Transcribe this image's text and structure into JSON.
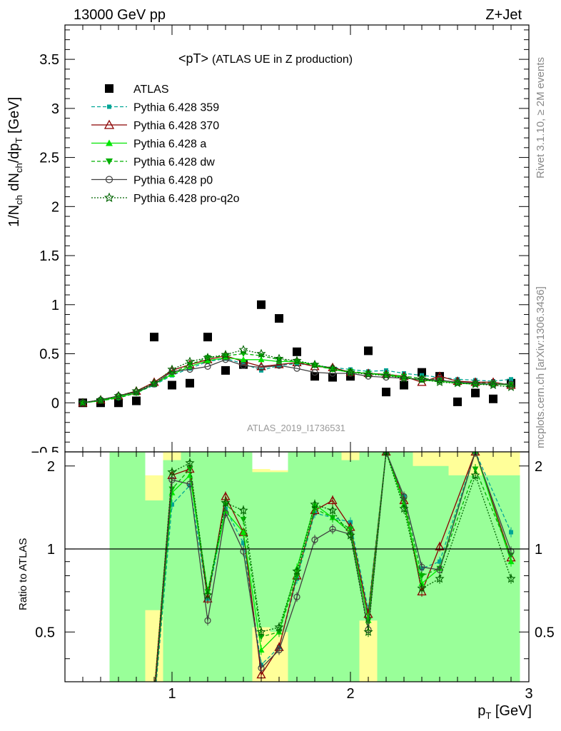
{
  "header": {
    "left": "13000 GeV pp",
    "right": "Z+Jet"
  },
  "side_labels": {
    "rivet": "Rivet 3.1.10, ≥ 2M events",
    "mcplots": "mcplots.cern.ch [arXiv:1306.3436]"
  },
  "watermark": "ATLAS_2019_I1736531",
  "colors": {
    "atlas": "#000000",
    "p359": "#00a596",
    "p370": "#8b0000",
    "a": "#00e600",
    "dw": "#00b000",
    "p0": "#404040",
    "pro_q2o": "#006400",
    "band_green": "#99ff99",
    "band_yellow": "#ffff99"
  },
  "chart_data": [
    {
      "type": "line",
      "title": "<pT> (ATLAS UE in Z production)",
      "title_parts": {
        "main": "<pT>",
        "sub": "(ATLAS UE in Z production)"
      },
      "ylabel": "1/N_ch dN_ch/dp_T [GeV]",
      "ylabel_parts": {
        "a": "1/N",
        "a_sub": "ch",
        "b": " dN",
        "b_sub": "ch",
        "c": "/dp",
        "c_sub": "T",
        "d": " [GeV]"
      },
      "ylim": [
        -0.5,
        3.85
      ],
      "xlim": [
        0.4,
        3.0
      ],
      "yticks": [
        "0",
        "0.5",
        "1",
        "1.5",
        "2",
        "2.5",
        "3",
        "3.5"
      ],
      "legend_position": "top-left",
      "x": [
        0.5,
        0.6,
        0.7,
        0.8,
        0.9,
        1.0,
        1.1,
        1.2,
        1.3,
        1.4,
        1.5,
        1.6,
        1.7,
        1.8,
        1.9,
        2.0,
        2.1,
        2.2,
        2.3,
        2.4,
        2.5,
        2.6,
        2.7,
        2.8,
        2.9
      ],
      "series": [
        {
          "name": "ATLAS",
          "values": [
            0.0,
            0.0,
            0.0,
            0.02,
            0.67,
            0.18,
            0.2,
            0.67,
            0.33,
            0.39,
            1.0,
            0.86,
            0.52,
            0.27,
            0.26,
            0.27,
            0.53,
            0.11,
            0.18,
            0.31,
            0.27,
            0.01,
            0.1,
            0.04,
            0.2
          ]
        },
        {
          "name": "Pythia 6.428 359",
          "values": [
            0.0,
            0.03,
            0.05,
            0.1,
            0.18,
            0.28,
            0.35,
            0.42,
            0.45,
            0.4,
            0.33,
            0.38,
            0.4,
            0.38,
            0.36,
            0.34,
            0.32,
            0.33,
            0.3,
            0.28,
            0.26,
            0.24,
            0.23,
            0.22,
            0.24
          ]
        },
        {
          "name": "Pythia 6.428 370",
          "values": [
            0.0,
            0.03,
            0.07,
            0.12,
            0.21,
            0.33,
            0.39,
            0.44,
            0.48,
            0.42,
            0.37,
            0.39,
            0.41,
            0.37,
            0.36,
            0.31,
            0.3,
            0.29,
            0.27,
            0.21,
            0.27,
            0.22,
            0.21,
            0.21,
            0.18
          ]
        },
        {
          "name": "Pythia 6.428 a",
          "values": [
            0.0,
            0.02,
            0.06,
            0.1,
            0.19,
            0.29,
            0.37,
            0.43,
            0.46,
            0.44,
            0.44,
            0.42,
            0.42,
            0.39,
            0.34,
            0.31,
            0.3,
            0.28,
            0.26,
            0.23,
            0.22,
            0.2,
            0.19,
            0.19,
            0.18
          ]
        },
        {
          "name": "Pythia 6.428 dw",
          "values": [
            0.0,
            0.02,
            0.05,
            0.1,
            0.19,
            0.3,
            0.39,
            0.46,
            0.48,
            0.5,
            0.48,
            0.44,
            0.42,
            0.38,
            0.34,
            0.32,
            0.3,
            0.29,
            0.27,
            0.25,
            0.23,
            0.21,
            0.2,
            0.2,
            0.19
          ]
        },
        {
          "name": "Pythia 6.428 p0",
          "values": [
            0.0,
            0.03,
            0.07,
            0.11,
            0.19,
            0.32,
            0.34,
            0.37,
            0.44,
            0.38,
            0.36,
            0.38,
            0.35,
            0.31,
            0.3,
            0.3,
            0.27,
            0.26,
            0.25,
            0.24,
            0.23,
            0.21,
            0.2,
            0.19,
            0.19
          ]
        },
        {
          "name": "Pythia 6.428 pro-q2o",
          "values": [
            0.0,
            0.03,
            0.07,
            0.12,
            0.2,
            0.34,
            0.42,
            0.46,
            0.49,
            0.54,
            0.5,
            0.45,
            0.43,
            0.39,
            0.35,
            0.31,
            0.29,
            0.28,
            0.25,
            0.24,
            0.21,
            0.2,
            0.19,
            0.18,
            0.16
          ]
        }
      ]
    },
    {
      "type": "line",
      "ylabel": "Ratio to ATLAS",
      "xlabel": "p_T [GeV]",
      "xlabel_parts": {
        "a": "p",
        "a_sub": "T",
        "b": " [GeV]"
      },
      "xlim": [
        0.4,
        3.0
      ],
      "ylim": [
        0.33,
        2.25
      ],
      "xticks": [
        "1",
        "2",
        "3"
      ],
      "yticks": [
        "0.5",
        "1",
        "2"
      ],
      "reference_line": 1,
      "x": [
        0.9,
        1.0,
        1.1,
        1.2,
        1.3,
        1.4,
        1.5,
        1.6,
        1.7,
        1.8,
        1.9,
        2.0,
        2.1,
        2.2,
        2.3,
        2.4,
        2.5,
        2.7,
        2.9
      ],
      "series": [
        {
          "name": "Pythia 6.428 359",
          "values": [
            0.27,
            1.45,
            1.7,
            0.66,
            1.4,
            1.05,
            0.38,
            0.44,
            0.78,
            1.35,
            1.3,
            1.25,
            0.6,
            2.25,
            1.55,
            0.85,
            0.9,
            2.25,
            1.15
          ]
        },
        {
          "name": "Pythia 6.428 370",
          "values": [
            0.3,
            1.85,
            1.95,
            0.66,
            1.55,
            1.15,
            0.35,
            0.44,
            0.8,
            1.38,
            1.5,
            1.2,
            0.58,
            2.25,
            1.5,
            0.7,
            1.02,
            2.25,
            0.93
          ]
        },
        {
          "name": "Pythia 6.428 a",
          "values": [
            0.28,
            1.6,
            1.85,
            0.7,
            1.37,
            1.15,
            0.43,
            0.5,
            0.85,
            1.45,
            1.3,
            1.15,
            0.55,
            2.25,
            1.45,
            0.75,
            0.85,
            2.25,
            0.9
          ]
        },
        {
          "name": "Pythia 6.428 dw",
          "values": [
            0.28,
            1.65,
            1.95,
            0.7,
            1.45,
            1.28,
            0.48,
            0.5,
            0.8,
            1.4,
            1.3,
            1.18,
            0.55,
            2.25,
            1.5,
            0.8,
            0.85,
            1.95,
            0.95
          ]
        },
        {
          "name": "Pythia 6.428 p0",
          "values": [
            0.28,
            1.78,
            1.72,
            0.55,
            1.35,
            0.98,
            0.37,
            0.43,
            0.67,
            1.08,
            1.18,
            1.13,
            0.51,
            2.25,
            1.55,
            0.86,
            0.84,
            2.25,
            0.98
          ]
        },
        {
          "name": "Pythia 6.428 pro-q2o",
          "values": [
            0.3,
            1.9,
            2.05,
            0.68,
            1.47,
            1.38,
            0.5,
            0.52,
            0.83,
            1.45,
            1.38,
            1.12,
            0.5,
            2.25,
            1.4,
            0.72,
            0.78,
            1.85,
            0.78
          ]
        }
      ],
      "bands": [
        {
          "x": [
            0.65,
            0.85
          ],
          "green": [
            0.33,
            2.25
          ],
          "yellow": [
            0.33,
            2.25
          ]
        },
        {
          "x": [
            0.85,
            0.95
          ],
          "green": [
            0.6,
            1.5
          ],
          "yellow": [
            0.33,
            1.85
          ]
        },
        {
          "x": [
            0.95,
            1.05
          ],
          "green": [
            0.33,
            2.1
          ],
          "yellow": [
            0.33,
            2.25
          ]
        },
        {
          "x": [
            1.05,
            1.15
          ],
          "green": [
            0.33,
            2.25
          ],
          "yellow": [
            0.33,
            2.25
          ]
        },
        {
          "x": [
            1.15,
            1.45
          ],
          "green": [
            0.33,
            2.25
          ],
          "yellow": [
            0.33,
            2.25
          ]
        },
        {
          "x": [
            1.45,
            1.55
          ],
          "green": [
            0.52,
            1.9
          ],
          "yellow": [
            0.33,
            1.95
          ]
        },
        {
          "x": [
            1.55,
            1.65
          ],
          "green": [
            0.5,
            1.9
          ],
          "yellow": [
            0.33,
            1.93
          ]
        },
        {
          "x": [
            1.65,
            1.75
          ],
          "green": [
            0.33,
            2.25
          ],
          "yellow": [
            0.33,
            2.25
          ]
        },
        {
          "x": [
            1.75,
            1.85
          ],
          "green": [
            0.33,
            2.25
          ],
          "yellow": [
            0.33,
            2.25
          ]
        },
        {
          "x": [
            1.85,
            1.95
          ],
          "green": [
            0.33,
            2.25
          ],
          "yellow": [
            0.33,
            2.25
          ]
        },
        {
          "x": [
            1.95,
            2.05
          ],
          "green": [
            0.33,
            2.1
          ],
          "yellow": [
            0.33,
            2.25
          ]
        },
        {
          "x": [
            2.05,
            2.15
          ],
          "green": [
            0.55,
            2.25
          ],
          "yellow": [
            0.33,
            2.25
          ]
        },
        {
          "x": [
            2.15,
            2.35
          ],
          "green": [
            0.33,
            2.25
          ],
          "yellow": [
            0.33,
            2.25
          ]
        },
        {
          "x": [
            2.35,
            2.55
          ],
          "green": [
            0.33,
            2.0
          ],
          "yellow": [
            0.33,
            2.25
          ]
        },
        {
          "x": [
            2.55,
            2.95
          ],
          "green": [
            0.33,
            1.85
          ],
          "yellow": [
            0.33,
            2.25
          ]
        }
      ]
    }
  ]
}
